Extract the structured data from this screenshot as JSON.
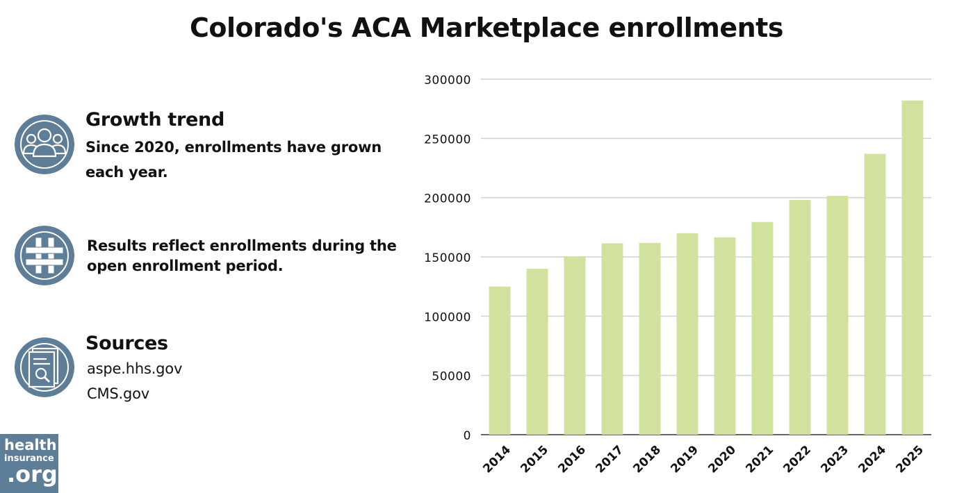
{
  "title": "Colorado's ACA Marketplace enrollments",
  "info": {
    "growth": {
      "icon": "people-group-icon",
      "heading": "Growth trend",
      "text_line1": "Since 2020, enrollments have grown",
      "text_line2": "each year."
    },
    "results": {
      "icon": "hashtag-icon",
      "text_line1": "Results reflect enrollments during the",
      "text_line2": "open enrollment period."
    },
    "sources": {
      "icon": "document-search-icon",
      "heading": "Sources",
      "lines": [
        "aspe.hhs.gov",
        "CMS.gov"
      ]
    }
  },
  "logo": {
    "line1": "health",
    "line2": "insurance",
    "line3": ".org",
    "mark": "™"
  },
  "colors": {
    "bar": "#d1e29f",
    "icon_ring": "#5e7d96",
    "grid": "#d0d0d0"
  },
  "chart_data": {
    "type": "bar",
    "categories": [
      "2014",
      "2015",
      "2016",
      "2017",
      "2018",
      "2019",
      "2020",
      "2021",
      "2022",
      "2023",
      "2024",
      "2025"
    ],
    "values": [
      125000,
      140000,
      150500,
      161500,
      161800,
      170000,
      166500,
      179500,
      198000,
      201500,
      237000,
      282000
    ],
    "yticks": [
      0,
      50000,
      100000,
      150000,
      200000,
      250000,
      300000
    ],
    "ylim": [
      0,
      300000
    ],
    "grid": true,
    "title": "",
    "xlabel": "",
    "ylabel": ""
  }
}
